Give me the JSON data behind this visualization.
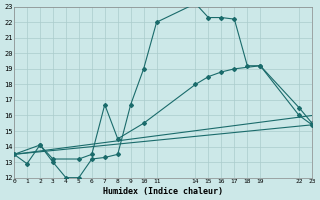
{
  "xlabel": "Humidex (Indice chaleur)",
  "bg_color": "#cce8e8",
  "grid_color": "#aacccc",
  "line_color": "#1a6b6b",
  "xlim": [
    0,
    23
  ],
  "ylim": [
    12,
    23
  ],
  "xticks": [
    0,
    1,
    2,
    3,
    4,
    5,
    6,
    7,
    8,
    9,
    10,
    11,
    14,
    15,
    16,
    17,
    18,
    19,
    22,
    23
  ],
  "yticks": [
    12,
    13,
    14,
    15,
    16,
    17,
    18,
    19,
    20,
    21,
    22,
    23
  ],
  "curve1_x": [
    0,
    1,
    2,
    3,
    4,
    5,
    6,
    7,
    8,
    9,
    10,
    11,
    14,
    15,
    16,
    17,
    18,
    19,
    22,
    23
  ],
  "curve1_y": [
    13.5,
    12.9,
    14.1,
    13.0,
    12.0,
    12.0,
    13.2,
    13.3,
    13.5,
    16.7,
    19.0,
    22.0,
    23.2,
    22.3,
    22.3,
    22.2,
    19.2,
    19.2,
    16.0,
    15.4
  ],
  "curve2_x": [
    0,
    2,
    3,
    5,
    6,
    7,
    8,
    10,
    14,
    15,
    16,
    17,
    19,
    22,
    23
  ],
  "curve2_y": [
    13.5,
    14.1,
    13.2,
    13.2,
    13.5,
    16.7,
    14.5,
    15.5,
    18.0,
    18.5,
    18.8,
    19.0,
    19.2,
    16.5,
    15.5
  ],
  "curve3_x": [
    0,
    23
  ],
  "curve3_y": [
    13.5,
    16.0
  ],
  "curve4_x": [
    0,
    23
  ],
  "curve4_y": [
    13.5,
    15.4
  ]
}
